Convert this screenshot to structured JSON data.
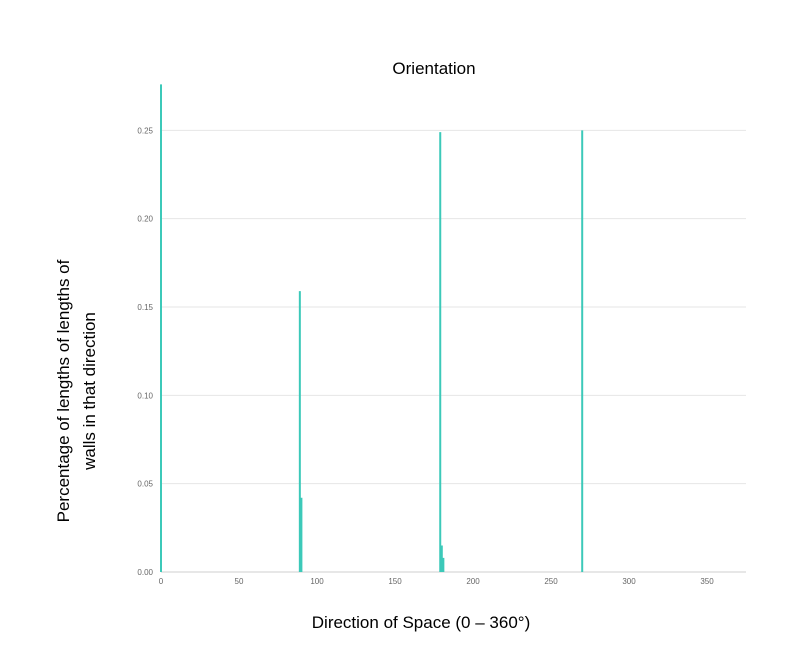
{
  "chart_data": {
    "type": "bar",
    "title": "Orientation",
    "xlabel": "Direction of Space (0 – 360°)",
    "ylabel_lines": [
      "Percentage of lengths  of lengths of",
      "walls in that direction"
    ],
    "xlim": [
      0,
      375
    ],
    "ylim": [
      0,
      0.27
    ],
    "xticks": [
      0,
      50,
      100,
      150,
      200,
      250,
      300,
      350
    ],
    "yticks": [
      0.0,
      0.05,
      0.1,
      0.15,
      0.2,
      0.25
    ],
    "ytick_labels": [
      "0.00",
      "0.05",
      "0.10",
      "0.15",
      "0.20",
      "0.25"
    ],
    "grid": true,
    "color": "#3cc9b9",
    "points": [
      {
        "x": 0,
        "y": 0.276
      },
      {
        "x": 89,
        "y": 0.159
      },
      {
        "x": 90,
        "y": 0.042
      },
      {
        "x": 179,
        "y": 0.249
      },
      {
        "x": 180,
        "y": 0.015
      },
      {
        "x": 181,
        "y": 0.008
      },
      {
        "x": 270,
        "y": 0.25
      }
    ]
  }
}
